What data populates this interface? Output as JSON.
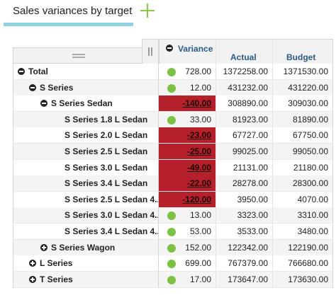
{
  "header": {
    "title": "Sales variances by target",
    "add_icon": "plus-icon"
  },
  "columns": {
    "variance": "Variance",
    "actual": "Actual",
    "budget": "Budget"
  },
  "colors": {
    "positive_indicator": "#7cc242",
    "negative_highlight": "#b5202a",
    "label_text": "#2a5a8a"
  },
  "rows": [
    {
      "label": "Total",
      "toggle": "minus",
      "variance": "728.00",
      "actual": "1372258.00",
      "budget": "1371530.00",
      "status": "positive"
    },
    {
      "label": "S Series",
      "toggle": "minus",
      "variance": "12.00",
      "actual": "431232.00",
      "budget": "431220.00",
      "status": "positive"
    },
    {
      "label": "S Series Sedan",
      "toggle": "minus",
      "variance": "-140.00",
      "actual": "308890.00",
      "budget": "309030.00",
      "status": "negative"
    },
    {
      "label": "S Series 1.8 L Sedan",
      "toggle": "",
      "variance": "33.00",
      "actual": "81923.00",
      "budget": "81890.00",
      "status": "positive"
    },
    {
      "label": "S Series 2.0 L Sedan",
      "toggle": "",
      "variance": "-23.00",
      "actual": "67727.00",
      "budget": "67750.00",
      "status": "negative"
    },
    {
      "label": "S Series 2.5 L Sedan",
      "toggle": "",
      "variance": "-25.00",
      "actual": "99025.00",
      "budget": "99050.00",
      "status": "negative"
    },
    {
      "label": "S Series 3.0 L Sedan",
      "toggle": "",
      "variance": "-49.00",
      "actual": "21131.00",
      "budget": "21180.00",
      "status": "negative"
    },
    {
      "label": "S Series 3.4 L Sedan",
      "toggle": "",
      "variance": "-22.00",
      "actual": "28278.00",
      "budget": "28300.00",
      "status": "negative"
    },
    {
      "label": "S Series 2.5 L Sedan 4...",
      "toggle": "",
      "variance": "-120.00",
      "actual": "3950.00",
      "budget": "4070.00",
      "status": "negative"
    },
    {
      "label": "S Series 3.0 L Sedan 4...",
      "toggle": "",
      "variance": "13.00",
      "actual": "3323.00",
      "budget": "3310.00",
      "status": "positive"
    },
    {
      "label": "S Series 3.4 L Sedan 4...",
      "toggle": "",
      "variance": "53.00",
      "actual": "3533.00",
      "budget": "3480.00",
      "status": "positive"
    },
    {
      "label": "S Series Wagon",
      "toggle": "plus",
      "variance": "152.00",
      "actual": "122342.00",
      "budget": "122190.00",
      "status": "positive"
    },
    {
      "label": "L Series",
      "toggle": "plus",
      "variance": "699.00",
      "actual": "767379.00",
      "budget": "766680.00",
      "status": "positive"
    },
    {
      "label": "T Series",
      "toggle": "plus",
      "variance": "17.00",
      "actual": "173647.00",
      "budget": "173630.00",
      "status": "positive"
    }
  ]
}
